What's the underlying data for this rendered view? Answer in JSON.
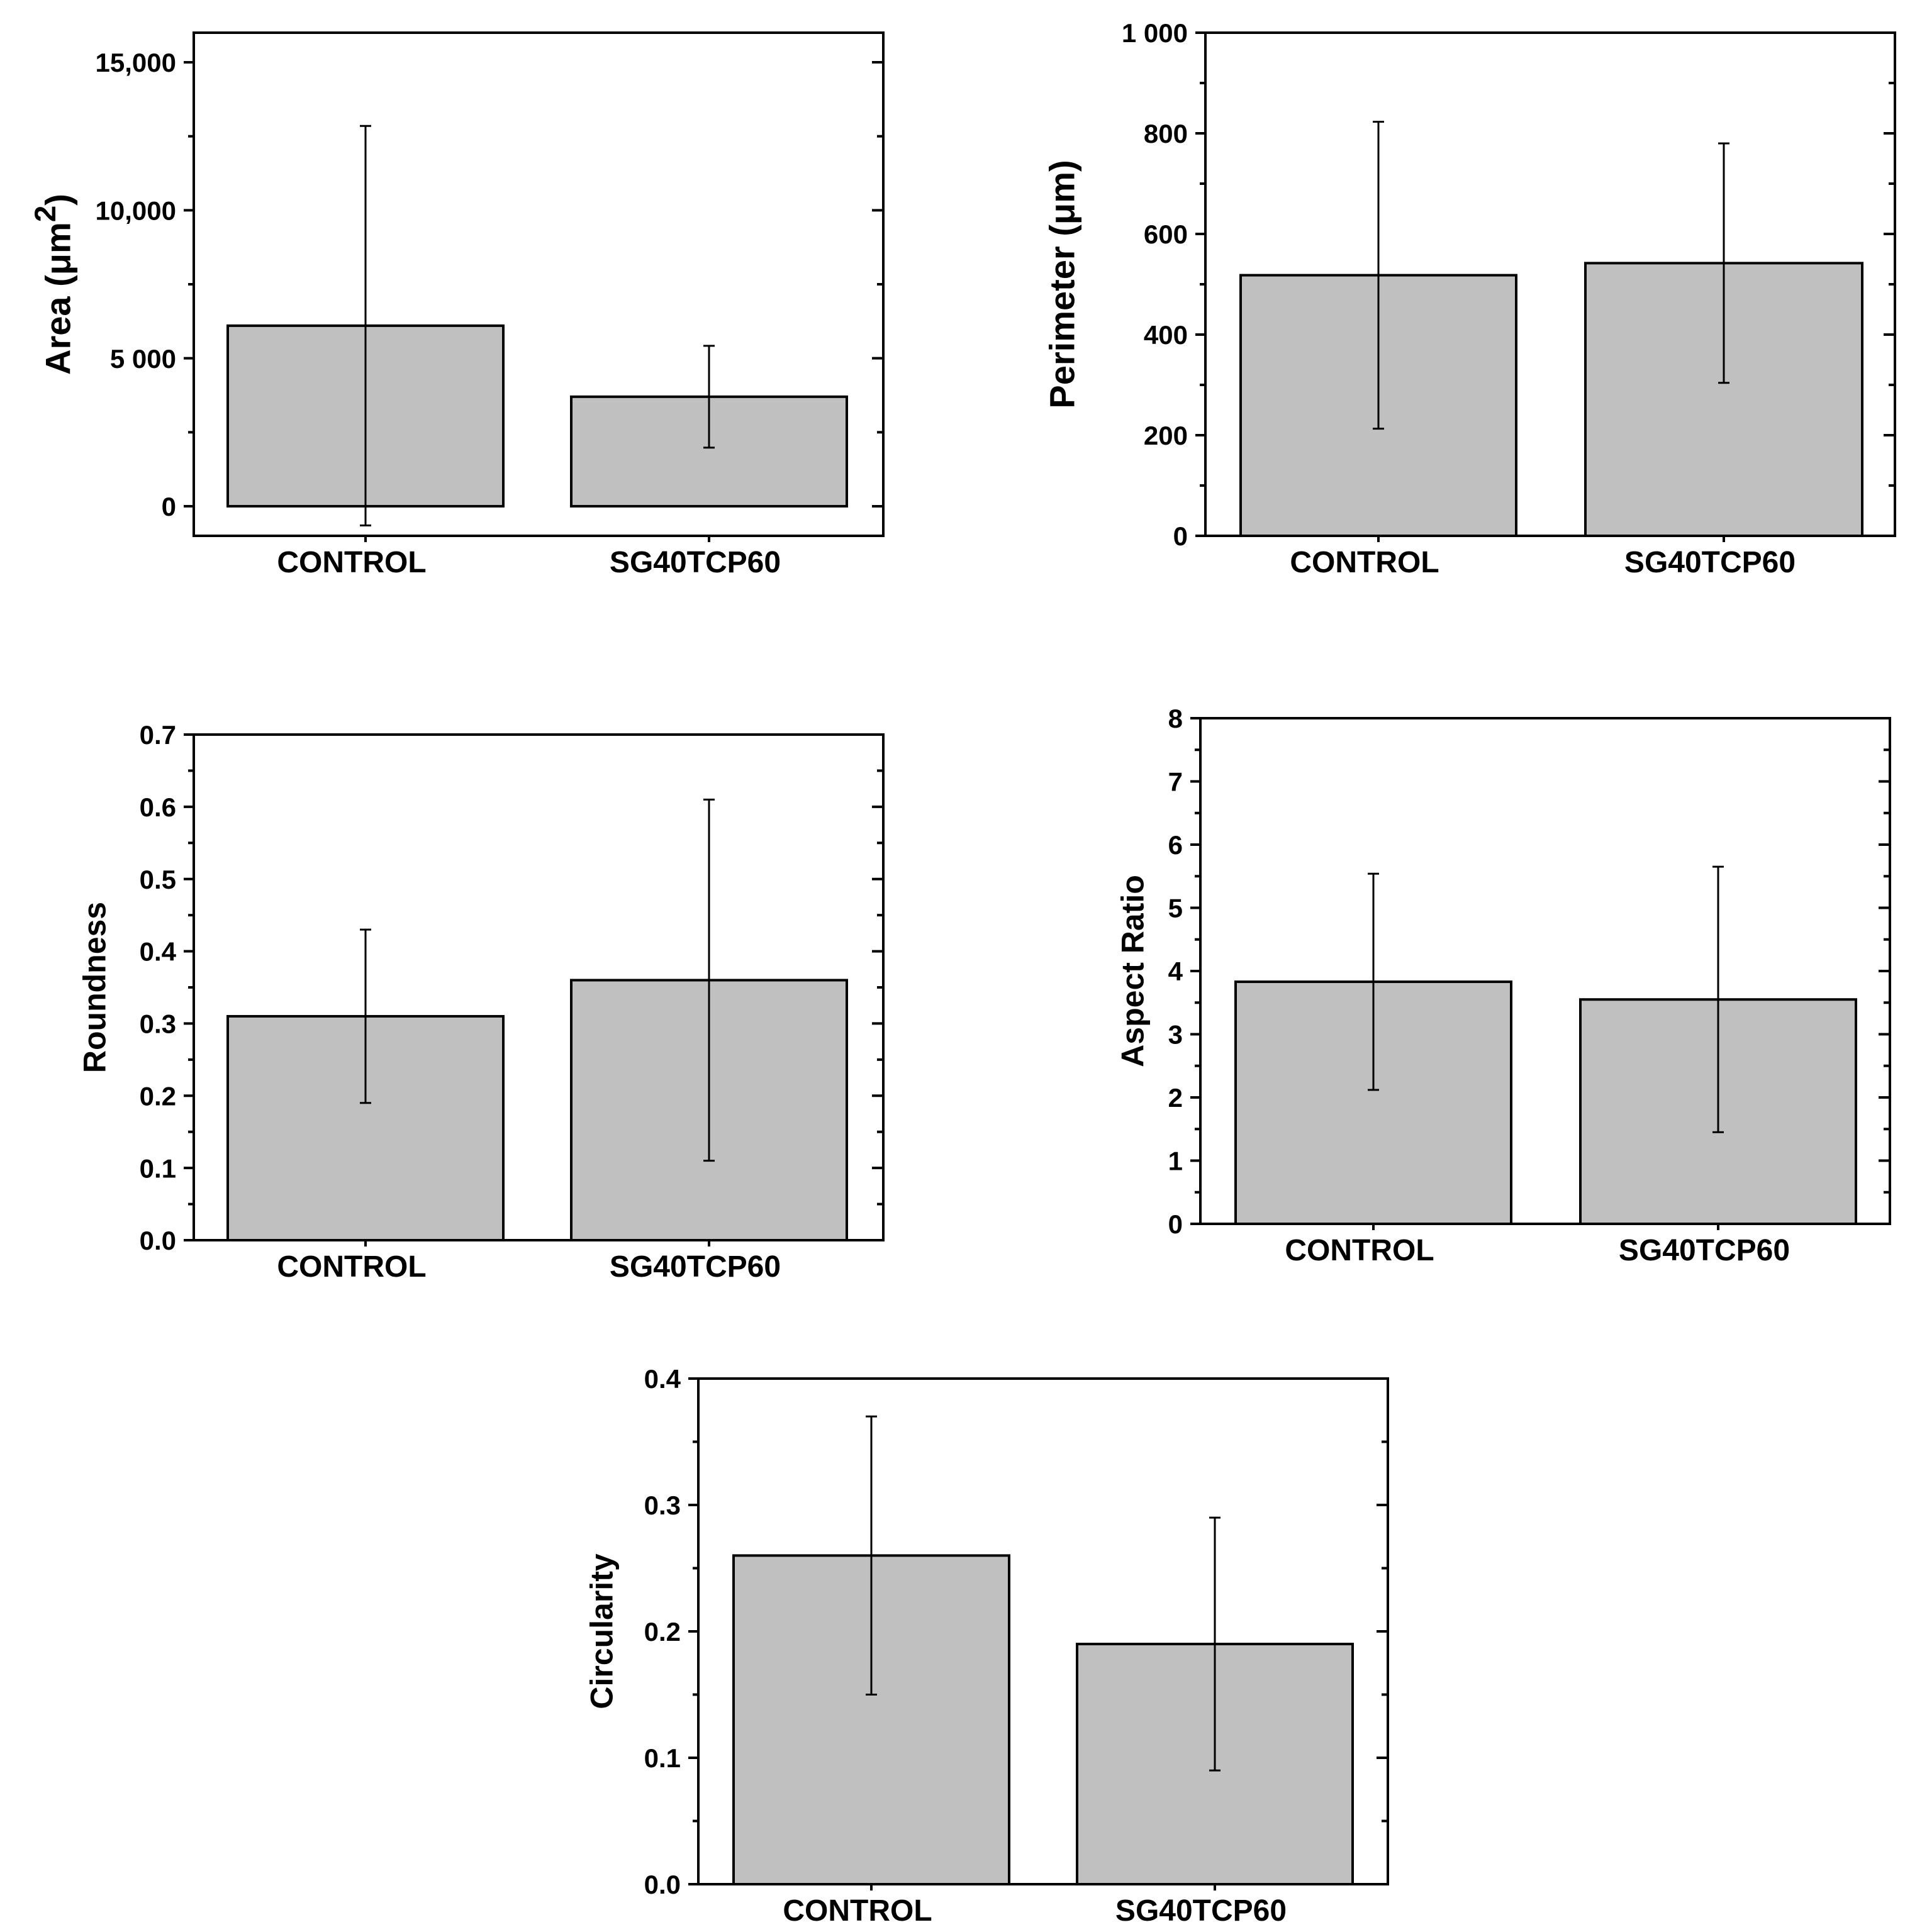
{
  "chart_data": [
    {
      "type": "bar",
      "categories": [
        "CONTROL",
        "SG40TCP60"
      ],
      "values": [
        6100,
        3700
      ],
      "errors": [
        6750,
        1720
      ],
      "ylabel": "Area (μm",
      "ylabel_sup": "2",
      "ylabel_close": ")",
      "ylim": [
        -1000,
        16000
      ],
      "yticks": [
        0,
        5000,
        10000,
        15000
      ],
      "ytick_labels": [
        "0",
        "5 000",
        "10,000",
        "15,000"
      ],
      "ytick_minor": 2500
    },
    {
      "type": "bar",
      "categories": [
        "CONTROL",
        "SG40TCP60"
      ],
      "values": [
        518,
        542
      ],
      "errors": [
        305,
        238
      ],
      "ylabel": "Perimeter (μm)",
      "ylim": [
        0,
        1000
      ],
      "yticks": [
        0,
        200,
        400,
        600,
        800,
        1000
      ],
      "ytick_labels": [
        "0",
        "200",
        "400",
        "600",
        "800",
        "1 000"
      ],
      "ytick_minor": 100
    },
    {
      "type": "bar",
      "categories": [
        "CONTROL",
        "SG40TCP60"
      ],
      "values": [
        0.31,
        0.36
      ],
      "errors": [
        0.12,
        0.25
      ],
      "ylabel": "Roundness",
      "ylim": [
        0,
        0.7
      ],
      "yticks": [
        0,
        0.1,
        0.2,
        0.3,
        0.4,
        0.5,
        0.6,
        0.7
      ],
      "ytick_labels": [
        "0.0",
        "0.1",
        "0.2",
        "0.3",
        "0.4",
        "0.5",
        "0.6",
        "0.7"
      ],
      "ytick_minor": 0.05
    },
    {
      "type": "bar",
      "categories": [
        "CONTROL",
        "SG40TCP60"
      ],
      "values": [
        3.83,
        3.55
      ],
      "errors": [
        1.71,
        2.1
      ],
      "ylabel": "Aspect Ratio",
      "ylim": [
        0,
        8
      ],
      "yticks": [
        0,
        1,
        2,
        3,
        4,
        5,
        6,
        7,
        8
      ],
      "ytick_labels": [
        "0",
        "1",
        "2",
        "3",
        "4",
        "5",
        "6",
        "7",
        "8"
      ],
      "ytick_minor": 0.5
    },
    {
      "type": "bar",
      "categories": [
        "CONTROL",
        "SG40TCP60"
      ],
      "values": [
        0.26,
        0.19
      ],
      "errors": [
        0.11,
        0.1
      ],
      "ylabel": "Circularity",
      "ylim": [
        0,
        0.4
      ],
      "yticks": [
        0,
        0.1,
        0.2,
        0.3,
        0.4
      ],
      "ytick_labels": [
        "0.0",
        "0.1",
        "0.2",
        "0.3",
        "0.4"
      ],
      "ytick_minor": 0.05
    }
  ]
}
